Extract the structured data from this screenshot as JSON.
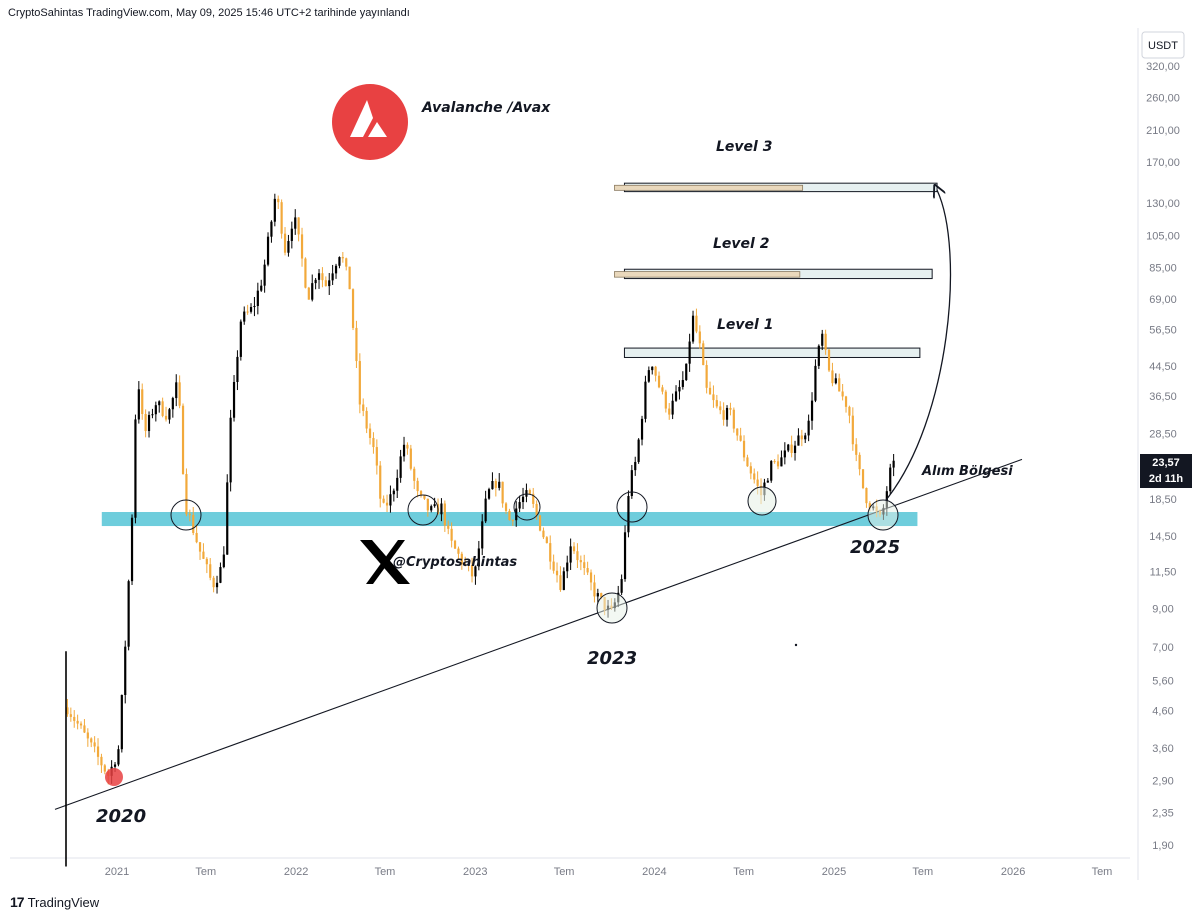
{
  "header": {
    "publisher_line": "CryptoSahintas TradingView.com, May 09, 2025 15:46 UTC+2 tarihinde yayınlandı"
  },
  "footer": {
    "brand": "TradingView",
    "logo_text": "17"
  },
  "annotations": {
    "asset_title": "Avalanche /Avax",
    "level1": "Level 1",
    "level2": "Level 2",
    "level3": "Level 3",
    "buy_zone": "Alım Bölgesi",
    "label_2020": "2020",
    "label_2023": "2023",
    "label_2025": "2025",
    "social_handle": "@Cryptosahintas",
    "x_logo": "X"
  },
  "colors": {
    "bull": "#000000",
    "bear": "#f2a93b",
    "support_zone": "#5ec8d8",
    "avax_logo": "#e84142",
    "level_box": "#e6f0f0",
    "level_box_tan": "#e9d8bc"
  },
  "price_badge": {
    "price": "23,57",
    "countdown": "2d 11h"
  },
  "chart_data": {
    "type": "candlestick",
    "title": "Avalanche /Avax",
    "currency": "USDT",
    "y_scale": "log",
    "y_ticks": [
      {
        "value": 320,
        "label": "320,00"
      },
      {
        "value": 260,
        "label": "260,00"
      },
      {
        "value": 210,
        "label": "210,00"
      },
      {
        "value": 170,
        "label": "170,00"
      },
      {
        "value": 130,
        "label": "130,00"
      },
      {
        "value": 105,
        "label": "105,00"
      },
      {
        "value": 85,
        "label": "85,00"
      },
      {
        "value": 69,
        "label": "69,00"
      },
      {
        "value": 56.5,
        "label": "56,50"
      },
      {
        "value": 44.5,
        "label": "44,50"
      },
      {
        "value": 36.5,
        "label": "36,50"
      },
      {
        "value": 28.5,
        "label": "28,50"
      },
      {
        "value": 18.5,
        "label": "18,50"
      },
      {
        "value": 14.5,
        "label": "14,50"
      },
      {
        "value": 11.5,
        "label": "11,50"
      },
      {
        "value": 9,
        "label": "9,00"
      },
      {
        "value": 7,
        "label": "7,00"
      },
      {
        "value": 5.6,
        "label": "5,60"
      },
      {
        "value": 4.6,
        "label": "4,60"
      },
      {
        "value": 3.6,
        "label": "3,60"
      },
      {
        "value": 2.9,
        "label": "2,90"
      },
      {
        "value": 2.35,
        "label": "2,35"
      },
      {
        "value": 1.9,
        "label": "1,90"
      }
    ],
    "x_ticks": [
      {
        "date": "2021-01-01",
        "label": "2021"
      },
      {
        "date": "2021-07-01",
        "label": "Tem"
      },
      {
        "date": "2022-01-01",
        "label": "2022"
      },
      {
        "date": "2022-07-01",
        "label": "Tem"
      },
      {
        "date": "2023-01-01",
        "label": "2023"
      },
      {
        "date": "2023-07-01",
        "label": "Tem"
      },
      {
        "date": "2024-01-01",
        "label": "2024"
      },
      {
        "date": "2024-07-01",
        "label": "Tem"
      },
      {
        "date": "2025-01-01",
        "label": "2025"
      },
      {
        "date": "2025-07-01",
        "label": "Tem"
      },
      {
        "date": "2026-01-01",
        "label": "2026"
      },
      {
        "date": "2026-07-01",
        "label": "Tem"
      }
    ],
    "x_range": [
      "2020-10-01",
      "2026-09-15"
    ],
    "y_range": [
      1.6,
      380
    ],
    "price_path": [
      [
        "2020-09-22",
        4.7
      ],
      [
        "2020-11-01",
        3.8
      ],
      [
        "2020-12-15",
        3.0
      ],
      [
        "2021-01-05",
        3.6
      ],
      [
        "2021-01-20",
        8
      ],
      [
        "2021-02-05",
        22
      ],
      [
        "2021-02-10",
        45
      ],
      [
        "2021-02-25",
        28
      ],
      [
        "2021-03-20",
        35
      ],
      [
        "2021-04-15",
        32
      ],
      [
        "2021-05-05",
        40
      ],
      [
        "2021-05-20",
        18
      ],
      [
        "2021-06-20",
        13
      ],
      [
        "2021-07-15",
        10.5
      ],
      [
        "2021-08-05",
        12
      ],
      [
        "2021-08-20",
        30
      ],
      [
        "2021-09-10",
        60
      ],
      [
        "2021-10-05",
        65
      ],
      [
        "2021-10-25",
        80
      ],
      [
        "2021-11-21",
        140
      ],
      [
        "2021-12-10",
        95
      ],
      [
        "2021-12-27",
        120
      ],
      [
        "2022-01-10",
        95
      ],
      [
        "2022-01-25",
        70
      ],
      [
        "2022-02-15",
        85
      ],
      [
        "2022-03-01",
        75
      ],
      [
        "2022-04-01",
        95
      ],
      [
        "2022-04-20",
        75
      ],
      [
        "2022-05-10",
        35
      ],
      [
        "2022-06-10",
        25
      ],
      [
        "2022-06-25",
        17
      ],
      [
        "2022-07-15",
        19
      ],
      [
        "2022-08-10",
        27
      ],
      [
        "2022-09-05",
        19
      ],
      [
        "2022-10-01",
        17
      ],
      [
        "2022-10-25",
        17.5
      ],
      [
        "2022-11-10",
        14
      ],
      [
        "2022-12-10",
        12
      ],
      [
        "2022-12-30",
        11
      ],
      [
        "2023-01-25",
        19
      ],
      [
        "2023-02-15",
        21
      ],
      [
        "2023-03-10",
        16
      ],
      [
        "2023-04-05",
        18.5
      ],
      [
        "2023-04-20",
        19
      ],
      [
        "2023-05-10",
        16
      ],
      [
        "2023-06-10",
        12
      ],
      [
        "2023-06-25",
        10.5
      ],
      [
        "2023-07-15",
        14
      ],
      [
        "2023-08-10",
        11.5
      ],
      [
        "2023-09-05",
        9.8
      ],
      [
        "2023-10-05",
        8.7
      ],
      [
        "2023-10-25",
        10.5
      ],
      [
        "2023-11-10",
        20
      ],
      [
        "2023-11-25",
        24
      ],
      [
        "2023-12-15",
        40
      ],
      [
        "2023-12-25",
        47
      ],
      [
        "2024-01-15",
        37
      ],
      [
        "2024-02-01",
        33
      ],
      [
        "2024-02-20",
        38
      ],
      [
        "2024-03-05",
        42
      ],
      [
        "2024-03-18",
        62
      ],
      [
        "2024-04-01",
        52
      ],
      [
        "2024-04-15",
        38
      ],
      [
        "2024-05-10",
        33
      ],
      [
        "2024-06-05",
        32
      ],
      [
        "2024-07-05",
        24
      ],
      [
        "2024-08-05",
        19
      ],
      [
        "2024-08-25",
        23
      ],
      [
        "2024-09-15",
        24
      ],
      [
        "2024-10-15",
        27
      ],
      [
        "2024-11-10",
        30
      ],
      [
        "2024-11-25",
        45
      ],
      [
        "2024-12-08",
        54
      ],
      [
        "2024-12-20",
        43
      ],
      [
        "2025-01-10",
        38
      ],
      [
        "2025-01-30",
        34
      ],
      [
        "2025-02-15",
        24
      ],
      [
        "2025-03-05",
        19
      ],
      [
        "2025-04-07",
        16
      ],
      [
        "2025-04-25",
        22
      ],
      [
        "2025-05-09",
        23.57
      ]
    ],
    "support_zone": {
      "low": 15.5,
      "high": 17,
      "x_start": "2020-12-01",
      "x_end": "2025-06-20"
    },
    "trendline": {
      "p1": [
        "2020-10-01",
        2.5
      ],
      "p2": [
        "2025-08-15",
        20
      ]
    },
    "levels": [
      {
        "name": "Level 1",
        "low": 47,
        "high": 50,
        "x_start": "2023-11-01",
        "x_end": "2025-06-25"
      },
      {
        "name": "Level 2",
        "low": 79,
        "high": 84,
        "x_start": "2023-11-01",
        "x_end": "2025-07-20"
      },
      {
        "name": "Level 3",
        "low": 140,
        "high": 148,
        "x_start": "2023-11-01",
        "x_end": "2025-07-30"
      }
    ],
    "current_price": 23.57
  }
}
